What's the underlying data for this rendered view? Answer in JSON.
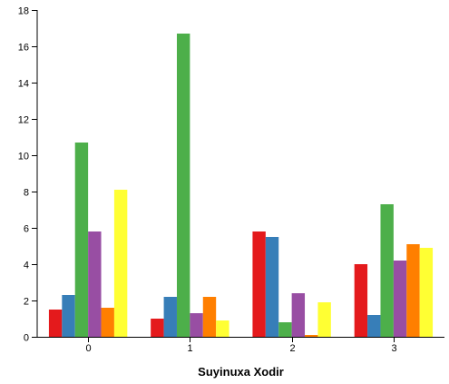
{
  "chart_data": {
    "type": "bar",
    "categories": [
      "0",
      "1",
      "2",
      "3"
    ],
    "series": [
      {
        "values": [
          1.5,
          1.0,
          5.8,
          4.0
        ],
        "color": "#e41a1c"
      },
      {
        "values": [
          2.3,
          2.2,
          5.5,
          1.2
        ],
        "color": "#377eb8"
      },
      {
        "values": [
          10.7,
          16.7,
          0.8,
          7.3
        ],
        "color": "#4daf4a"
      },
      {
        "values": [
          5.8,
          1.3,
          2.4,
          4.2
        ],
        "color": "#984ea3"
      },
      {
        "values": [
          1.6,
          2.2,
          0.1,
          5.1
        ],
        "color": "#ff7f00"
      },
      {
        "values": [
          8.1,
          0.9,
          1.9,
          4.9
        ],
        "color": "#ffff33"
      }
    ],
    "title": "",
    "xlabel": "Suyinuxa Xodir",
    "ylabel": "",
    "ylim": [
      0,
      18
    ],
    "yticks": [
      0,
      2,
      4,
      6,
      8,
      10,
      12,
      14,
      16,
      18
    ],
    "grid": false,
    "legend": "none"
  }
}
